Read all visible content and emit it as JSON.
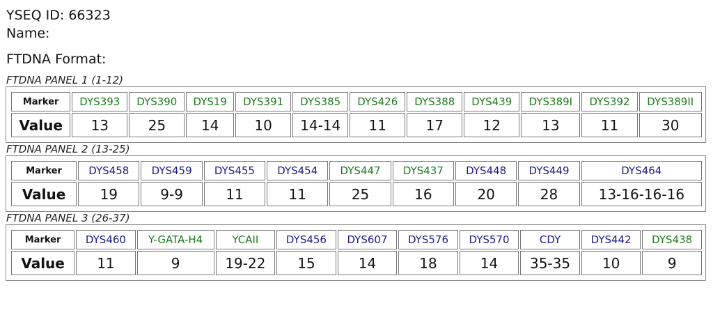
{
  "header": {
    "yseq_id": "YSEQ ID: 66323",
    "name": "Name:",
    "format": "FTDNA Format:"
  },
  "panels": [
    {
      "title": "FTDNA PANEL 1 (1-12)",
      "marker_label": "Marker",
      "value_label": "Value",
      "markers": [
        {
          "name": "DYS393",
          "color": "#1f7a1f"
        },
        {
          "name": "DYS390",
          "color": "#1f7a1f"
        },
        {
          "name": "DYS19",
          "color": "#1f7a1f"
        },
        {
          "name": "DYS391",
          "color": "#1f7a1f"
        },
        {
          "name": "DYS385",
          "color": "#1f7a1f"
        },
        {
          "name": "DYS426",
          "color": "#1f7a1f"
        },
        {
          "name": "DYS388",
          "color": "#1f7a1f"
        },
        {
          "name": "DYS439",
          "color": "#1f7a1f"
        },
        {
          "name": "DYS389I",
          "color": "#1f7a1f"
        },
        {
          "name": "DYS392",
          "color": "#1f7a1f"
        },
        {
          "name": "DYS389II",
          "color": "#1f7a1f"
        }
      ],
      "values": [
        "13",
        "25",
        "14",
        "10",
        "14-14",
        "11",
        "17",
        "12",
        "13",
        "11",
        "30"
      ]
    },
    {
      "title": "FTDNA PANEL 2 (13-25)",
      "marker_label": "Marker",
      "value_label": "Value",
      "markers": [
        {
          "name": "DYS458",
          "color": "#1a1a8c"
        },
        {
          "name": "DYS459",
          "color": "#1a1a8c"
        },
        {
          "name": "DYS455",
          "color": "#1a1a8c"
        },
        {
          "name": "DYS454",
          "color": "#1a1a8c"
        },
        {
          "name": "DYS447",
          "color": "#1f7a1f"
        },
        {
          "name": "DYS437",
          "color": "#1f7a1f"
        },
        {
          "name": "DYS448",
          "color": "#1a1a8c"
        },
        {
          "name": "DYS449",
          "color": "#1a1a8c"
        },
        {
          "name": "DYS464",
          "color": "#1a1a8c"
        }
      ],
      "values": [
        "19",
        "9-9",
        "11",
        "11",
        "25",
        "16",
        "20",
        "28",
        "13-16-16-16"
      ]
    },
    {
      "title": "FTDNA PANEL 3 (26-37)",
      "marker_label": "Marker",
      "value_label": "Value",
      "markers": [
        {
          "name": "DYS460",
          "color": "#1a1a8c"
        },
        {
          "name": "Y-GATA-H4",
          "color": "#1f7a1f"
        },
        {
          "name": "YCAII",
          "color": "#1f7a1f"
        },
        {
          "name": "DYS456",
          "color": "#1a1a8c"
        },
        {
          "name": "DYS607",
          "color": "#1a1a8c"
        },
        {
          "name": "DYS576",
          "color": "#1a1a8c"
        },
        {
          "name": "DYS570",
          "color": "#1a1a8c"
        },
        {
          "name": "CDY",
          "color": "#1a1a8c"
        },
        {
          "name": "DYS442",
          "color": "#1a1a8c"
        },
        {
          "name": "DYS438",
          "color": "#1f7a1f"
        }
      ],
      "values": [
        "11",
        "9",
        "19-22",
        "15",
        "14",
        "18",
        "14",
        "35-35",
        "10",
        "9"
      ]
    }
  ]
}
